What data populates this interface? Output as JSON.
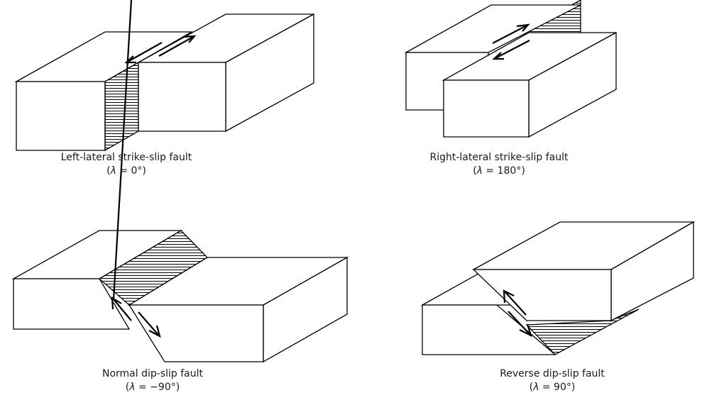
{
  "diagrams": [
    {
      "id": "left-lateral",
      "title": "Left-lateral strike-slip fault",
      "lambda_symbol": "λ",
      "lambda_rest": " = 0°"
    },
    {
      "id": "right-lateral",
      "title": "Right-lateral strike-slip fault",
      "lambda_symbol": "λ",
      "lambda_rest": " = 180°"
    },
    {
      "id": "normal-dip-slip",
      "title": "Normal dip-slip fault",
      "lambda_symbol": "λ",
      "lambda_rest": " = −90°"
    },
    {
      "id": "reverse-dip-slip",
      "title": "Reverse dip-slip fault",
      "lambda_symbol": "λ",
      "lambda_rest": " = 90°"
    }
  ],
  "colors": {
    "line": "#000000",
    "face": "#ffffff"
  }
}
